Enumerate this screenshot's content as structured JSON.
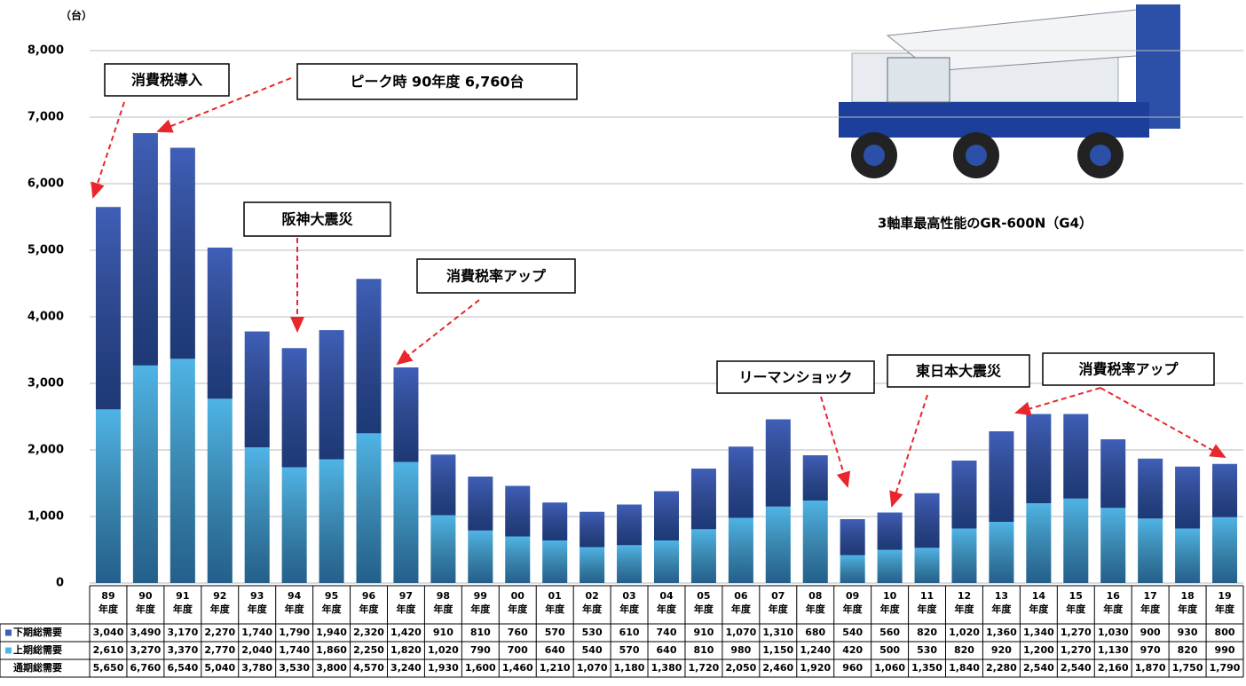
{
  "chart_data": {
    "type": "stacked_bar",
    "y_unit": "（台）",
    "categories": [
      "89年度",
      "90年度",
      "91年度",
      "92年度",
      "93年度",
      "94年度",
      "95年度",
      "96年度",
      "97年度",
      "98年度",
      "99年度",
      "00年度",
      "01年度",
      "02年度",
      "03年度",
      "04年度",
      "05年度",
      "06年度",
      "07年度",
      "08年度",
      "09年度",
      "10年度",
      "11年度",
      "12年度",
      "13年度",
      "14年度",
      "15年度",
      "16年度",
      "17年度",
      "18年度",
      "19年度"
    ],
    "series": [
      {
        "name": "下期総需要",
        "color": "#3f5fb8",
        "stack": "top",
        "values": [
          3040,
          3490,
          3170,
          2270,
          1740,
          1790,
          1940,
          2320,
          1420,
          910,
          810,
          760,
          570,
          530,
          610,
          740,
          910,
          1070,
          1310,
          680,
          540,
          560,
          820,
          1020,
          1360,
          1340,
          1270,
          1030,
          900,
          930,
          800
        ],
        "value_labels": [
          "3,040",
          "3,490",
          "3,170",
          "2,270",
          "1,740",
          "1,790",
          "1,940",
          "2,320",
          "1,420",
          "910",
          "810",
          "760",
          "570",
          "530",
          "610",
          "740",
          "910",
          "1,070",
          "1,310",
          "680",
          "540",
          "560",
          "820",
          "1,020",
          "1,360",
          "1,340",
          "1,270",
          "1,030",
          "900",
          "930",
          "800"
        ]
      },
      {
        "name": "上期総需要",
        "color": "#4fb4e6",
        "stack": "bottom",
        "values": [
          2610,
          3270,
          3370,
          2770,
          2040,
          1740,
          1860,
          2250,
          1820,
          1020,
          790,
          700,
          640,
          540,
          570,
          640,
          810,
          980,
          1150,
          1240,
          420,
          500,
          530,
          820,
          920,
          1200,
          1270,
          1130,
          970,
          820,
          990
        ],
        "value_labels": [
          "2,610",
          "3,270",
          "3,370",
          "2,770",
          "2,040",
          "1,740",
          "1,860",
          "2,250",
          "1,820",
          "1,020",
          "790",
          "700",
          "640",
          "540",
          "570",
          "640",
          "810",
          "980",
          "1,150",
          "1,240",
          "420",
          "500",
          "530",
          "820",
          "920",
          "1,200",
          "1,270",
          "1,130",
          "970",
          "820",
          "990"
        ]
      }
    ],
    "totals": {
      "name": "通期総需要",
      "values": [
        5650,
        6760,
        6540,
        5040,
        3780,
        3530,
        3800,
        4570,
        3240,
        1930,
        1600,
        1460,
        1210,
        1070,
        1180,
        1380,
        1720,
        2050,
        2460,
        1920,
        960,
        1060,
        1350,
        1840,
        2280,
        2540,
        2540,
        2160,
        1870,
        1750,
        1790
      ],
      "value_labels": [
        "5,650",
        "6,760",
        "6,540",
        "5,040",
        "3,780",
        "3,530",
        "3,800",
        "4,570",
        "3,240",
        "1,930",
        "1,600",
        "1,460",
        "1,210",
        "1,070",
        "1,180",
        "1,380",
        "1,720",
        "2,050",
        "2,460",
        "1,920",
        "960",
        "1,060",
        "1,350",
        "1,840",
        "2,280",
        "2,540",
        "2,540",
        "2,160",
        "1,870",
        "1,750",
        "1,790"
      ]
    },
    "ylim": [
      0,
      8000
    ],
    "yticks": [
      0,
      {
        "value": 1000,
        "label": "1,000"
      },
      {
        "value": 2000,
        "label": "2,000"
      },
      {
        "value": 3000,
        "label": "3,000"
      },
      {
        "value": 4000,
        "label": "4,000"
      },
      {
        "value": 5000,
        "label": "5,000"
      },
      {
        "value": 6000,
        "label": "6,000"
      },
      {
        "value": 7000,
        "label": "7,000"
      },
      {
        "value": 8000,
        "label": "8,000"
      }
    ],
    "grid": true,
    "annotations": [
      "消費税導入",
      "ピーク時 90年度 6,760台",
      "阪神大震災",
      "消費税率アップ",
      "リーマンショック",
      "東日本大震災",
      "消費税率アップ"
    ],
    "image_caption": "3軸車最高性能のGR-600N（G4）"
  }
}
